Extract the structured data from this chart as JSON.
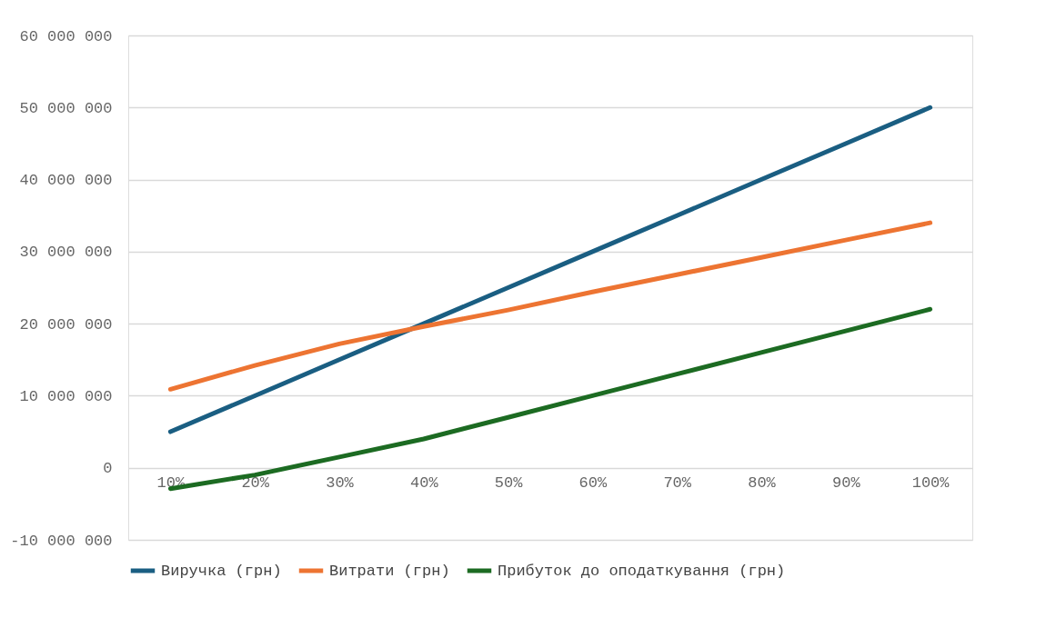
{
  "chart_data": {
    "type": "line",
    "categories": [
      "10%",
      "20%",
      "30%",
      "40%",
      "50%",
      "60%",
      "70%",
      "80%",
      "90%",
      "100%"
    ],
    "series": [
      {
        "name": "Виручка (грн)",
        "color": "#1a5e82",
        "values": [
          5000000,
          10000000,
          15000000,
          20000000,
          25000000,
          30000000,
          35000000,
          40000000,
          45000000,
          50000000
        ]
      },
      {
        "name": "Витрати (грн)",
        "color": "#ed7432",
        "values": [
          10900000,
          14200000,
          17200000,
          19600000,
          21900000,
          24400000,
          26800000,
          29200000,
          31600000,
          34000000
        ]
      },
      {
        "name": "Прибуток до оподаткування (грн)",
        "color": "#1c6b22",
        "values": [
          -2900000,
          -1000000,
          1500000,
          4000000,
          7000000,
          10000000,
          13000000,
          16000000,
          19000000,
          22000000
        ]
      }
    ],
    "ylim": [
      -10000000,
      60000000
    ],
    "yticks": [
      {
        "value": -10000000,
        "label": "-10 000 000"
      },
      {
        "value": 0,
        "label": "0"
      },
      {
        "value": 10000000,
        "label": "10 000 000"
      },
      {
        "value": 20000000,
        "label": "20 000 000"
      },
      {
        "value": 30000000,
        "label": "30 000 000"
      },
      {
        "value": 40000000,
        "label": "40 000 000"
      },
      {
        "value": 50000000,
        "label": "50 000 000"
      },
      {
        "value": 60000000,
        "label": "60 000 000"
      }
    ],
    "grid": "y",
    "legend": "bottom",
    "marker": "none",
    "line_style": "solid"
  }
}
